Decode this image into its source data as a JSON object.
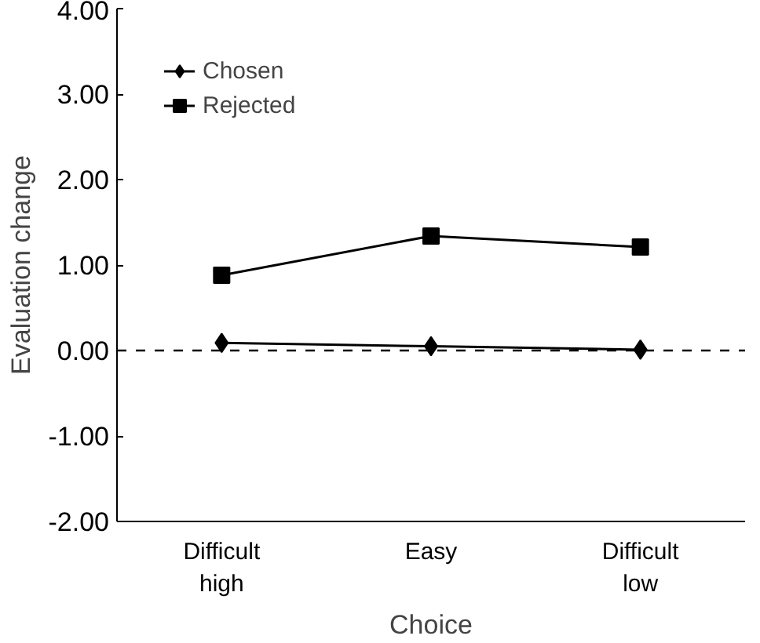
{
  "chart_data": {
    "type": "line",
    "xlabel": "Choice",
    "ylabel": "Evaluation change",
    "categories": [
      "Difficult\nhigh",
      "Easy",
      "Difficult\nlow"
    ],
    "series": [
      {
        "name": "Chosen",
        "color": "#000000",
        "marker": "diamond",
        "values": [
          0.09,
          0.05,
          0.01
        ]
      },
      {
        "name": "Rejected",
        "color": "#000000",
        "marker": "square",
        "values": [
          0.88,
          1.34,
          1.21
        ]
      }
    ],
    "ylim": [
      -2,
      4
    ],
    "yticks": [
      {
        "value": -2,
        "label": "-2.00"
      },
      {
        "value": -1,
        "label": "-1.00"
      },
      {
        "value": 0,
        "label": "0.00"
      },
      {
        "value": 1,
        "label": "1.00"
      },
      {
        "value": 2,
        "label": "2.00"
      },
      {
        "value": 3,
        "label": "3.00"
      },
      {
        "value": 4,
        "label": "4.00"
      }
    ],
    "ref_lines": [
      {
        "axis": "y",
        "value": 0,
        "label": null,
        "color": "#000000",
        "line_style": "dashed"
      }
    ],
    "grid": false,
    "legend": "top left",
    "line_style": "solid"
  }
}
